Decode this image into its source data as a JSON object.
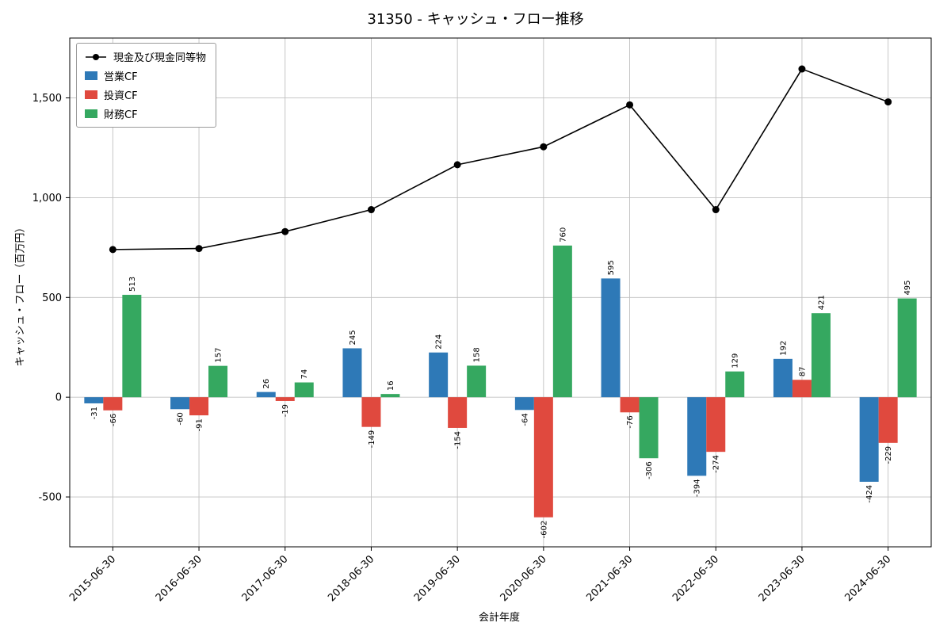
{
  "figure": {
    "title": "31350 - キャッシュ・フロー推移",
    "xlabel": "会計年度",
    "ylabel": "キャッシュ・フロー（百万円）"
  },
  "chart_data": {
    "type": "bar",
    "title": "31350 - キャッシュ・フロー推移",
    "xlabel": "会計年度",
    "ylabel": "キャッシュ・フロー（百万円）",
    "categories": [
      "2015-06-30",
      "2016-06-30",
      "2017-06-30",
      "2018-06-30",
      "2019-06-30",
      "2020-06-30",
      "2021-06-30",
      "2022-06-30",
      "2023-06-30",
      "2024-06-30"
    ],
    "series": [
      {
        "name": "現金及び現金同等物",
        "type": "line",
        "color": "#000000",
        "values": [
          740,
          745,
          830,
          940,
          1165,
          1255,
          1465,
          940,
          1645,
          1480
        ]
      },
      {
        "name": "営業CF",
        "type": "bar",
        "color": "#2e79b7",
        "values": [
          -31,
          -60,
          26,
          245,
          224,
          -64,
          595,
          -394,
          192,
          -424
        ]
      },
      {
        "name": "投資CF",
        "type": "bar",
        "color": "#e0493e",
        "values": [
          -66,
          -91,
          -19,
          -149,
          -154,
          -602,
          -76,
          -274,
          87,
          -229
        ]
      },
      {
        "name": "財務CF",
        "type": "bar",
        "color": "#35a860",
        "values": [
          513,
          157,
          74,
          16,
          158,
          760,
          -306,
          129,
          421,
          495
        ]
      }
    ],
    "ylim": [
      -750,
      1800
    ],
    "yticks": [
      -500,
      0,
      500,
      1000,
      1500
    ],
    "grid": true,
    "legend_position": "upper left"
  }
}
